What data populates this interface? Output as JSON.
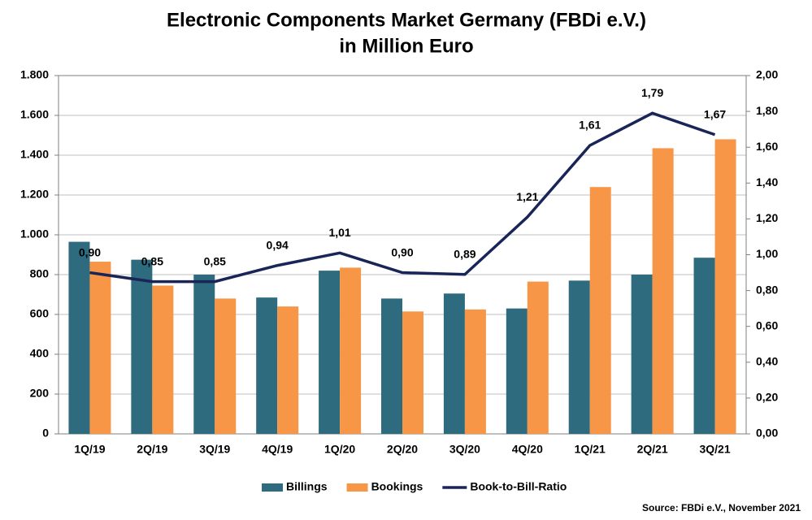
{
  "chart_data": {
    "type": "bar_line",
    "title": [
      "Electronic Components Market Germany (FBDi e.V.)",
      "in Million Euro"
    ],
    "categories": [
      "1Q/19",
      "2Q/19",
      "3Q/19",
      "4Q/19",
      "1Q/20",
      "2Q/20",
      "3Q/20",
      "4Q/20",
      "1Q/21",
      "2Q/21",
      "3Q/21"
    ],
    "series": [
      {
        "name": "Billings",
        "color": "#2e6b7e",
        "values": [
          965,
          875,
          800,
          685,
          820,
          680,
          705,
          630,
          770,
          800,
          885
        ]
      },
      {
        "name": "Bookings",
        "color": "#f79646",
        "values": [
          865,
          745,
          680,
          640,
          835,
          615,
          625,
          765,
          1240,
          1435,
          1480
        ]
      },
      {
        "name": "Book-to-Bill-Ratio",
        "color": "#1a2557",
        "axis": "y2",
        "values": [
          0.9,
          0.85,
          0.85,
          0.94,
          1.01,
          0.9,
          0.89,
          1.21,
          1.61,
          1.79,
          1.67
        ],
        "value_labels": [
          "0,90",
          "0,85",
          "0,85",
          "0,94",
          "1,01",
          "0,90",
          "0,89",
          "1,21",
          "1,61",
          "1,79",
          "1,67"
        ]
      }
    ],
    "ylim": [
      0,
      1800
    ],
    "yticks": [
      0,
      200,
      400,
      600,
      800,
      {
        "value": 1000,
        "label": "1.000"
      },
      {
        "value": 1200,
        "label": "1.200"
      },
      {
        "value": 1400,
        "label": "1.400"
      },
      {
        "value": 1600,
        "label": "1.600"
      },
      {
        "value": 1800,
        "label": "1.800"
      }
    ],
    "y2lim": [
      0,
      2
    ],
    "y2ticks": [
      {
        "value": 0,
        "label": "0,00"
      },
      {
        "value": 0.2,
        "label": "0,20"
      },
      {
        "value": 0.4,
        "label": "0,40"
      },
      {
        "value": 0.6,
        "label": "0,60"
      },
      {
        "value": 0.8,
        "label": "0,80"
      },
      {
        "value": 1,
        "label": "1,00"
      },
      {
        "value": 1.2,
        "label": "1,20"
      },
      {
        "value": 1.4,
        "label": "1,40"
      },
      {
        "value": 1.6,
        "label": "1,60"
      },
      {
        "value": 1.8,
        "label": "1,80"
      },
      {
        "value": 2,
        "label": "2,00"
      }
    ],
    "grid": true,
    "legend": "bottom",
    "source": "Source: FBDi e.V., November 2021"
  }
}
